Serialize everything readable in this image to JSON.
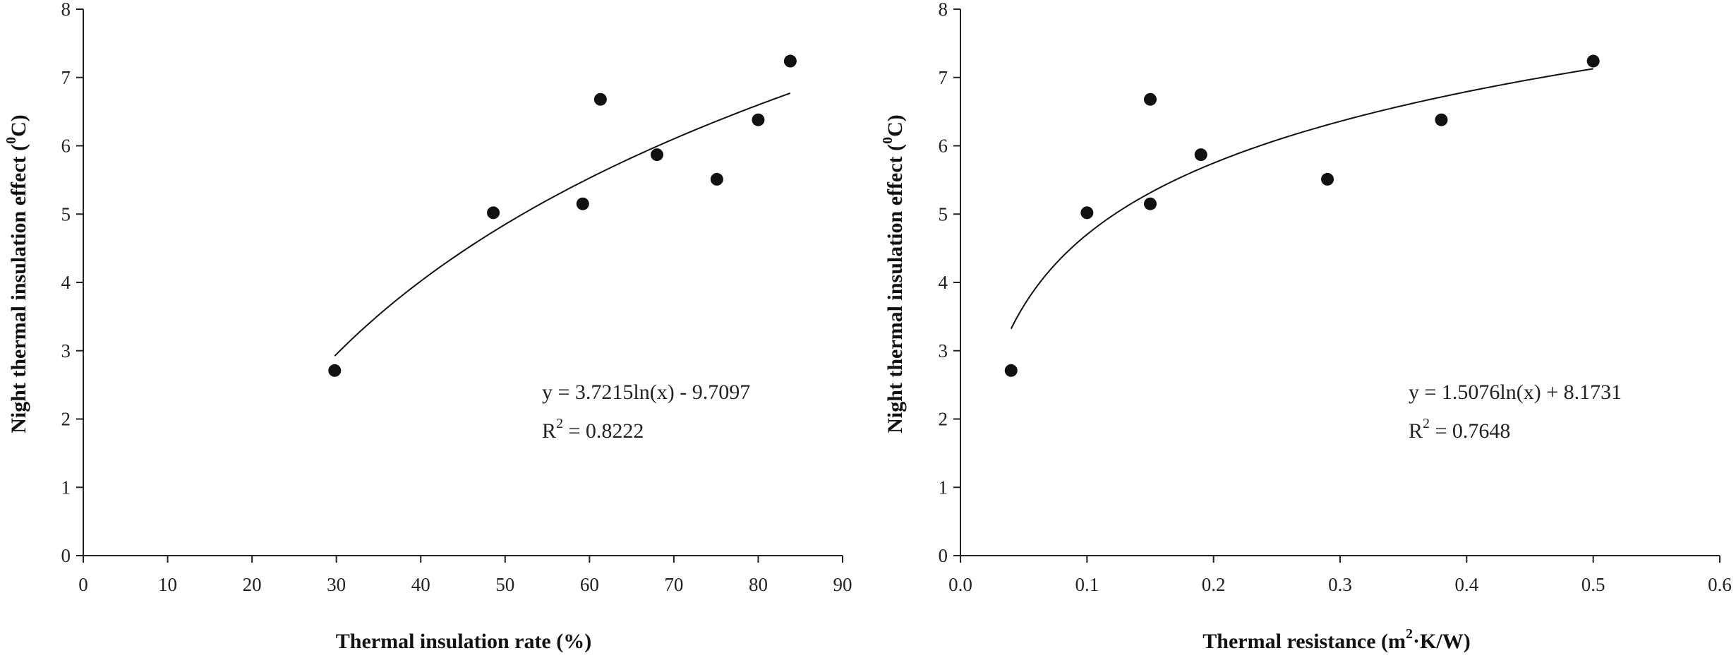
{
  "chart_data": [
    {
      "type": "scatter",
      "title": "",
      "xlabel": "Thermal insulation rate (%)",
      "ylabel_main": "Night thermal insulation effect (",
      "ylabel_sup": "0",
      "ylabel_tail": "C)",
      "xlim": [
        0,
        90
      ],
      "ylim": [
        0,
        8
      ],
      "xticks": [
        0,
        10,
        20,
        30,
        40,
        50,
        60,
        70,
        80,
        90
      ],
      "xtick_labels": [
        "0",
        "10",
        "20",
        "30",
        "40",
        "50",
        "60",
        "70",
        "80",
        "90"
      ],
      "yticks": [
        0,
        1,
        2,
        3,
        4,
        5,
        6,
        7,
        8
      ],
      "ytick_labels": [
        "0",
        "1",
        "2",
        "3",
        "4",
        "5",
        "6",
        "7",
        "8"
      ],
      "points": {
        "x": [
          29.8,
          48.6,
          59.2,
          61.3,
          68.0,
          75.1,
          80.0,
          83.8
        ],
        "y": [
          2.71,
          5.02,
          5.15,
          6.68,
          5.87,
          5.51,
          6.38,
          7.24
        ]
      },
      "fit": {
        "kind": "log",
        "a": 3.7215,
        "b": -9.7097,
        "x_range": [
          29.8,
          83.8
        ]
      },
      "equation_line1": "y = 3.7215ln(x) - 9.7097",
      "r2_prefix": "R",
      "r2_sup": "2",
      "r2_value": " = 0.8222"
    },
    {
      "type": "scatter",
      "title": "",
      "xlabel_main": "Thermal resistance (m",
      "xlabel_sup": "2",
      "xlabel_tail": "·K/W)",
      "ylabel_main": "Night thermal insulation effect (",
      "ylabel_sup": "0",
      "ylabel_tail": "C)",
      "xlim": [
        0.0,
        0.6
      ],
      "ylim": [
        0,
        8
      ],
      "xticks": [
        0.0,
        0.1,
        0.2,
        0.3,
        0.4,
        0.5,
        0.6
      ],
      "xtick_labels": [
        "0.0",
        "0.1",
        "0.2",
        "0.3",
        "0.4",
        "0.5",
        "0.6"
      ],
      "yticks": [
        0,
        1,
        2,
        3,
        4,
        5,
        6,
        7,
        8
      ],
      "ytick_labels": [
        "0",
        "1",
        "2",
        "3",
        "4",
        "5",
        "6",
        "7",
        "8"
      ],
      "points": {
        "x": [
          0.04,
          0.1,
          0.15,
          0.15,
          0.19,
          0.29,
          0.38,
          0.5
        ],
        "y": [
          2.71,
          5.02,
          5.15,
          6.68,
          5.87,
          5.51,
          6.38,
          7.24
        ]
      },
      "fit": {
        "kind": "log",
        "a": 1.5076,
        "b": 8.1731,
        "x_range": [
          0.04,
          0.5
        ]
      },
      "equation_line1": "y = 1.5076ln(x) + 8.1731",
      "r2_prefix": "R",
      "r2_sup": "2",
      "r2_value": " = 0.7648"
    }
  ]
}
